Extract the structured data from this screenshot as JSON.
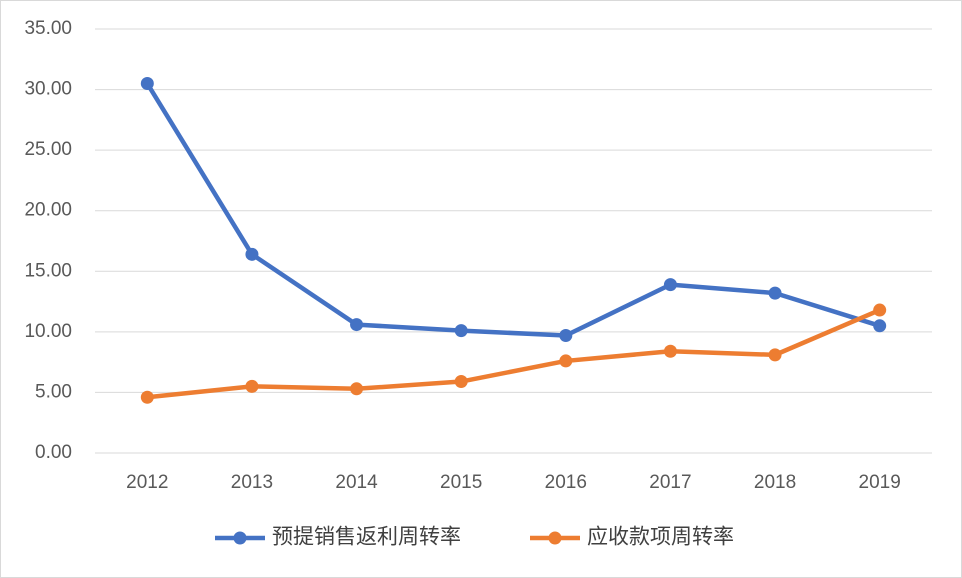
{
  "chart_data": {
    "type": "line",
    "categories": [
      "2012",
      "2013",
      "2014",
      "2015",
      "2016",
      "2017",
      "2018",
      "2019"
    ],
    "series": [
      {
        "name": "预提销售返利周转率",
        "color": "#4472c4",
        "values": [
          30.5,
          16.4,
          10.6,
          10.1,
          9.7,
          13.9,
          13.2,
          10.5
        ]
      },
      {
        "name": "应收款项周转率",
        "color": "#ed7d31",
        "values": [
          4.6,
          5.5,
          5.3,
          5.9,
          7.6,
          8.4,
          8.1,
          11.8
        ]
      }
    ],
    "ylim": [
      0,
      35
    ],
    "yticks": [
      {
        "value": 0,
        "label": "0.00"
      },
      {
        "value": 5,
        "label": "5.00"
      },
      {
        "value": 10,
        "label": "10.00"
      },
      {
        "value": 15,
        "label": "15.00"
      },
      {
        "value": 20,
        "label": "20.00"
      },
      {
        "value": 25,
        "label": "25.00"
      },
      {
        "value": 30,
        "label": "30.00"
      },
      {
        "value": 35,
        "label": "35.00"
      }
    ],
    "grid": true,
    "legend": "bottom"
  }
}
